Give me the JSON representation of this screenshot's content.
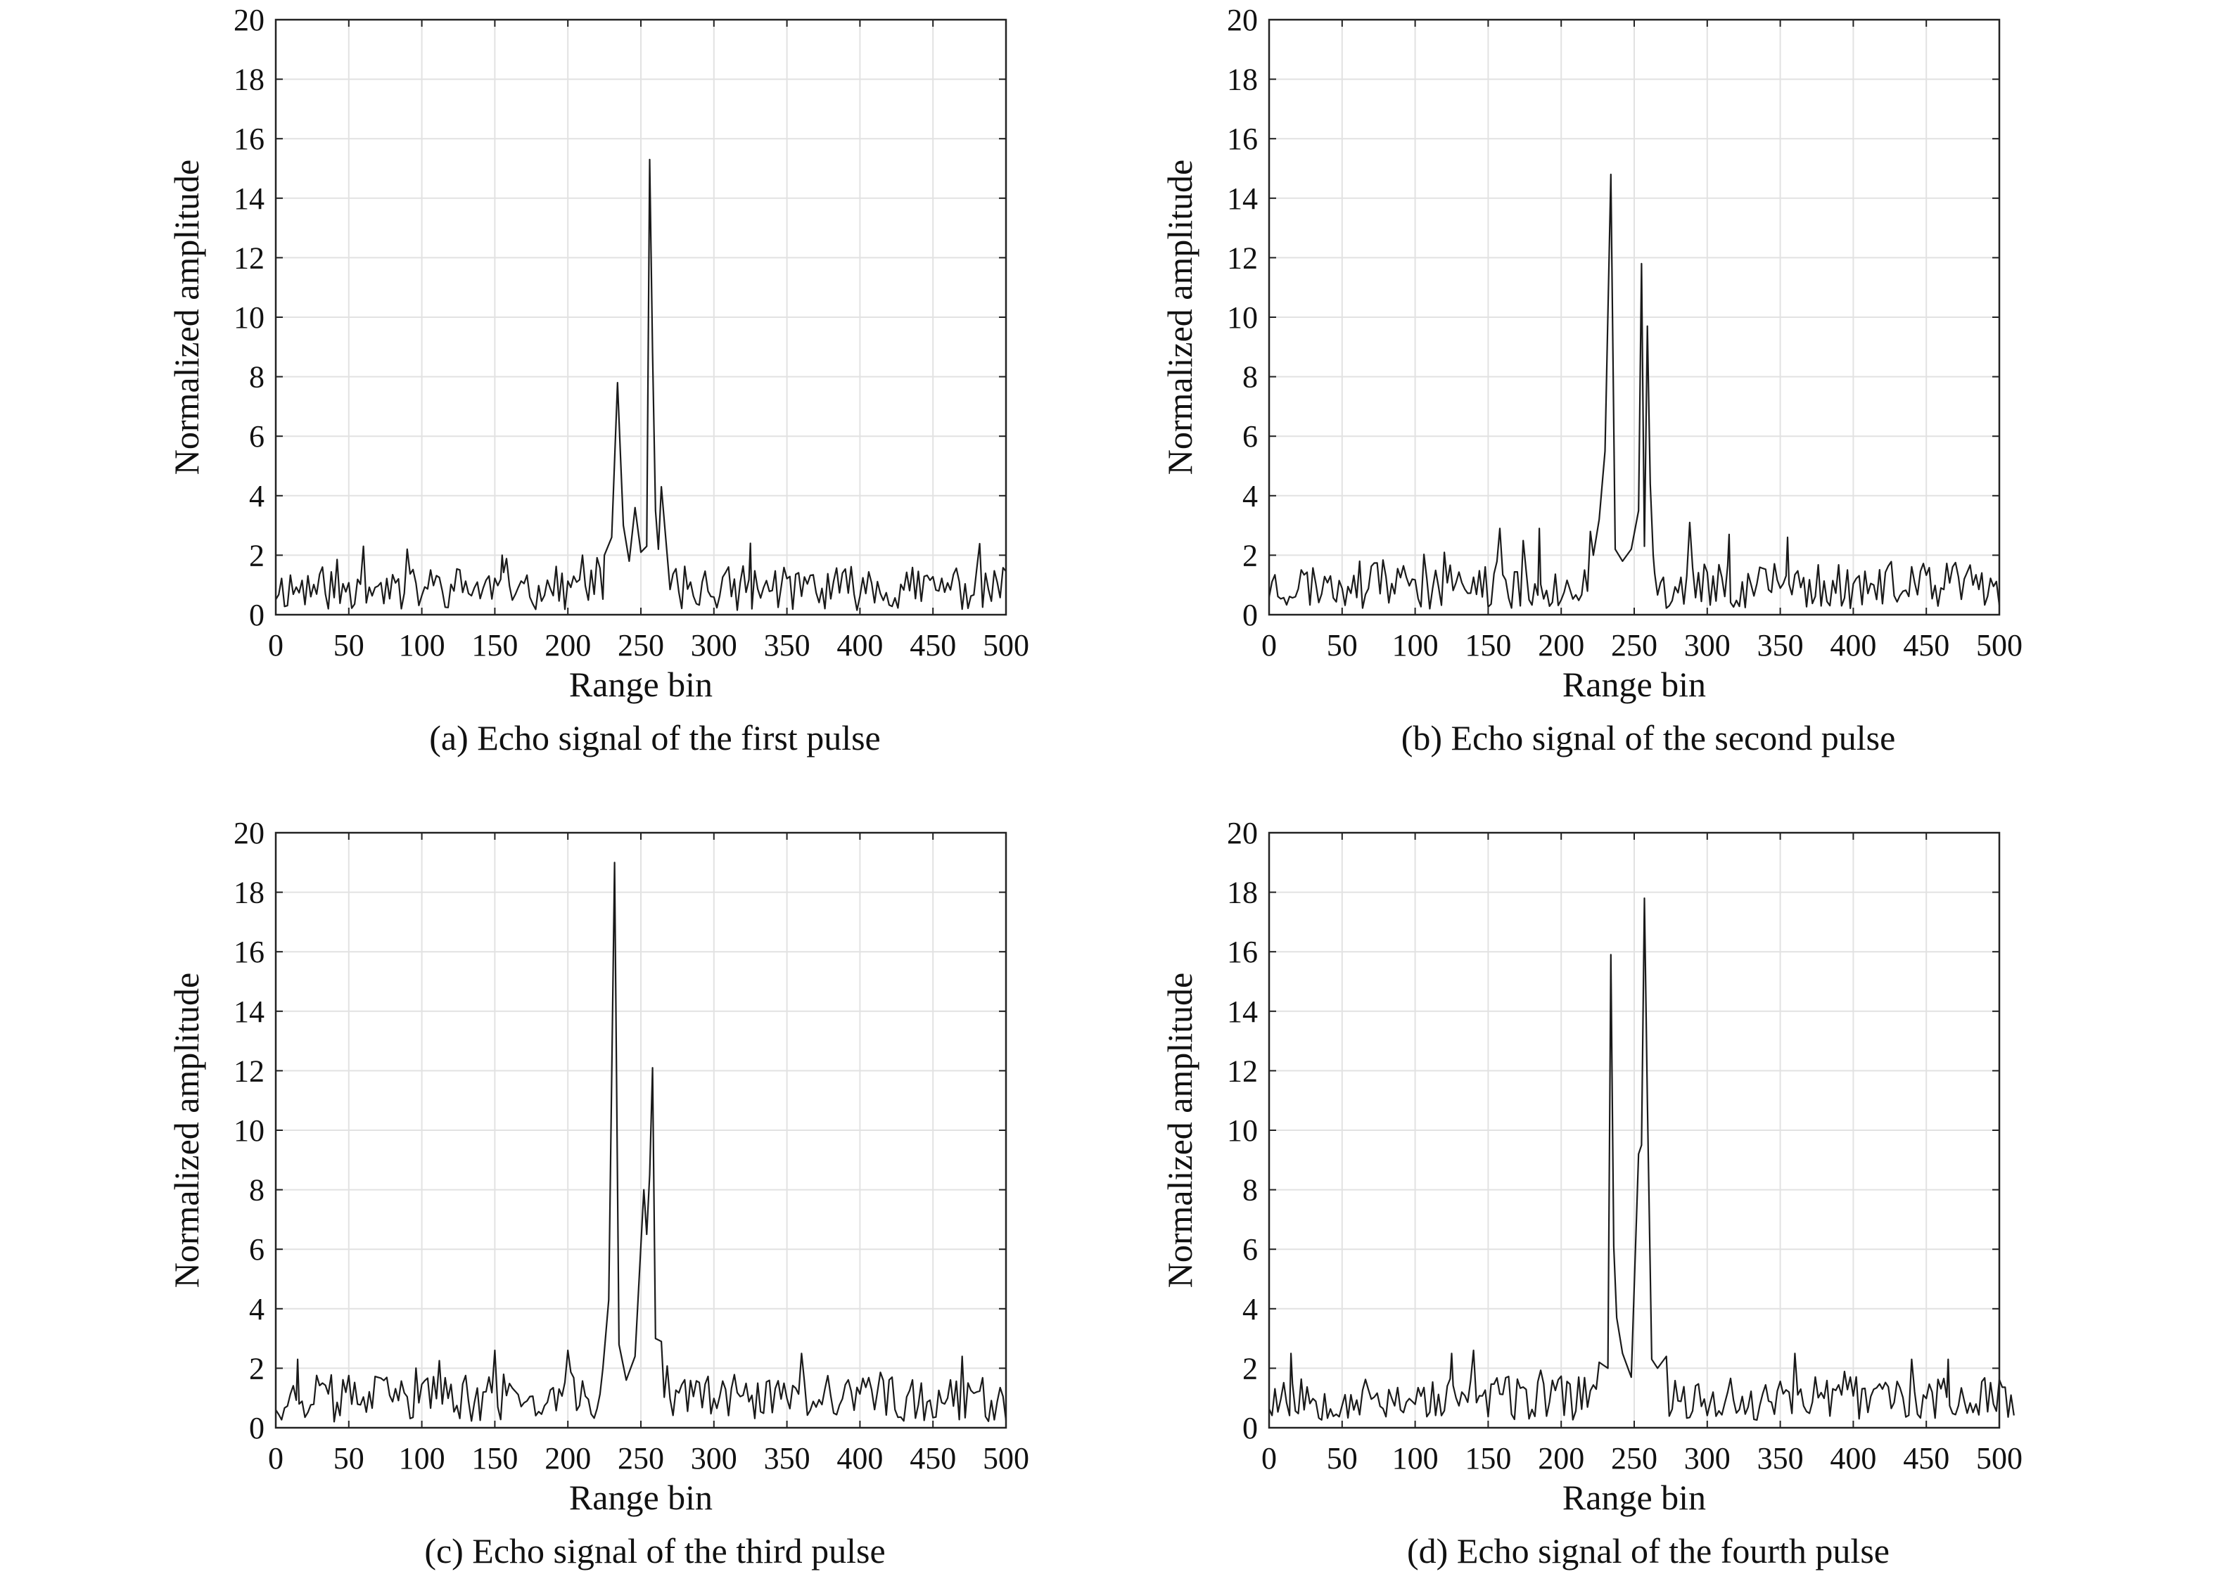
{
  "chart_data": [
    {
      "type": "line",
      "caption": "(a) Echo signal of the first pulse",
      "xlabel": "Range bin",
      "ylabel": "Normalized amplitude",
      "xlim": [
        0,
        500
      ],
      "ylim": [
        0,
        20
      ],
      "xticks": [
        0,
        50,
        100,
        150,
        200,
        250,
        300,
        350,
        400,
        450,
        500
      ],
      "yticks": [
        0,
        2,
        4,
        6,
        8,
        10,
        12,
        14,
        16,
        18,
        20
      ],
      "grid": true,
      "noise": {
        "seed": 11,
        "x_end": 500,
        "base": 0.9,
        "amp": 0.75,
        "spikes": [
          [
            60,
            2.3
          ],
          [
            90,
            2.2
          ],
          [
            155,
            2.0
          ],
          [
            210,
            2.0
          ],
          [
            325,
            2.4
          ]
        ]
      },
      "peaks": [
        {
          "x": 225,
          "y": 2.0
        },
        {
          "x": 230,
          "y": 2.6
        },
        {
          "x": 234,
          "y": 7.8
        },
        {
          "x": 236,
          "y": 5.4
        },
        {
          "x": 238,
          "y": 3.0
        },
        {
          "x": 242,
          "y": 1.8
        },
        {
          "x": 246,
          "y": 3.6
        },
        {
          "x": 250,
          "y": 2.1
        },
        {
          "x": 254,
          "y": 2.3
        },
        {
          "x": 256,
          "y": 15.3
        },
        {
          "x": 258,
          "y": 8.8
        },
        {
          "x": 260,
          "y": 3.5
        },
        {
          "x": 262,
          "y": 2.2
        },
        {
          "x": 264,
          "y": 4.3
        },
        {
          "x": 268,
          "y": 2.0
        }
      ]
    },
    {
      "type": "line",
      "caption": "(b) Echo signal of the second pulse",
      "xlabel": "Range bin",
      "ylabel": "Normalized amplitude",
      "xlim": [
        0,
        500
      ],
      "ylim": [
        0,
        20
      ],
      "xticks": [
        0,
        50,
        100,
        150,
        200,
        250,
        300,
        350,
        400,
        450,
        500
      ],
      "yticks": [
        0,
        2,
        4,
        6,
        8,
        10,
        12,
        14,
        16,
        18,
        20
      ],
      "grid": true,
      "noise": {
        "seed": 23,
        "x_end": 500,
        "base": 1.0,
        "amp": 0.8,
        "spikes": [
          [
            158,
            2.9
          ],
          [
            185,
            2.9
          ],
          [
            220,
            2.8
          ],
          [
            288,
            3.1
          ],
          [
            315,
            2.7
          ],
          [
            355,
            2.6
          ]
        ]
      },
      "peaks": [
        {
          "x": 222,
          "y": 2.0
        },
        {
          "x": 226,
          "y": 3.2
        },
        {
          "x": 230,
          "y": 5.5
        },
        {
          "x": 234,
          "y": 14.8
        },
        {
          "x": 237,
          "y": 2.2
        },
        {
          "x": 242,
          "y": 1.8
        },
        {
          "x": 248,
          "y": 2.2
        },
        {
          "x": 253,
          "y": 3.5
        },
        {
          "x": 255,
          "y": 11.8
        },
        {
          "x": 257,
          "y": 2.3
        },
        {
          "x": 259,
          "y": 9.7
        },
        {
          "x": 261,
          "y": 4.4
        },
        {
          "x": 263,
          "y": 2.0
        }
      ]
    },
    {
      "type": "line",
      "caption": "(c) Echo signal of the third pulse",
      "xlabel": "Range bin",
      "ylabel": "Normalized amplitude",
      "xlim": [
        0,
        500
      ],
      "ylim": [
        0,
        20
      ],
      "xticks": [
        0,
        50,
        100,
        150,
        200,
        250,
        300,
        350,
        400,
        450,
        500
      ],
      "yticks": [
        0,
        2,
        4,
        6,
        8,
        10,
        12,
        14,
        16,
        18,
        20
      ],
      "grid": true,
      "noise": {
        "seed": 37,
        "x_end": 500,
        "base": 1.0,
        "amp": 0.8,
        "spikes": [
          [
            15,
            2.3
          ],
          [
            150,
            2.6
          ],
          [
            200,
            2.6
          ],
          [
            360,
            2.5
          ],
          [
            470,
            2.4
          ]
        ]
      },
      "peaks": [
        {
          "x": 224,
          "y": 2.0
        },
        {
          "x": 228,
          "y": 4.3
        },
        {
          "x": 232,
          "y": 19.0
        },
        {
          "x": 235,
          "y": 2.8
        },
        {
          "x": 240,
          "y": 1.6
        },
        {
          "x": 246,
          "y": 2.4
        },
        {
          "x": 252,
          "y": 8.0
        },
        {
          "x": 254,
          "y": 6.5
        },
        {
          "x": 256,
          "y": 8.5
        },
        {
          "x": 258,
          "y": 12.1
        },
        {
          "x": 260,
          "y": 3.0
        },
        {
          "x": 264,
          "y": 2.9
        }
      ]
    },
    {
      "type": "line",
      "caption": "(d) Echo signal of the fourth pulse",
      "xlabel": "Range bin",
      "ylabel": "Normalized amplitude",
      "xlim": [
        0,
        500
      ],
      "ylim": [
        0,
        20
      ],
      "xticks": [
        0,
        50,
        100,
        150,
        200,
        250,
        300,
        350,
        400,
        450,
        500
      ],
      "yticks": [
        0,
        2,
        4,
        6,
        8,
        10,
        12,
        14,
        16,
        18,
        20
      ],
      "grid": true,
      "noise": {
        "seed": 53,
        "x_end": 510,
        "base": 1.0,
        "amp": 0.75,
        "spikes": [
          [
            15,
            2.5
          ],
          [
            125,
            2.5
          ],
          [
            140,
            2.6
          ],
          [
            360,
            2.5
          ],
          [
            440,
            2.3
          ],
          [
            465,
            2.3
          ]
        ]
      },
      "peaks": [
        {
          "x": 226,
          "y": 2.2
        },
        {
          "x": 232,
          "y": 2.0
        },
        {
          "x": 234,
          "y": 15.9
        },
        {
          "x": 236,
          "y": 6.1
        },
        {
          "x": 238,
          "y": 3.7
        },
        {
          "x": 242,
          "y": 2.5
        },
        {
          "x": 248,
          "y": 1.7
        },
        {
          "x": 253,
          "y": 9.2
        },
        {
          "x": 255,
          "y": 9.5
        },
        {
          "x": 257,
          "y": 17.8
        },
        {
          "x": 259,
          "y": 11.0
        },
        {
          "x": 262,
          "y": 2.3
        },
        {
          "x": 266,
          "y": 2.0
        },
        {
          "x": 272,
          "y": 2.4
        }
      ]
    }
  ]
}
